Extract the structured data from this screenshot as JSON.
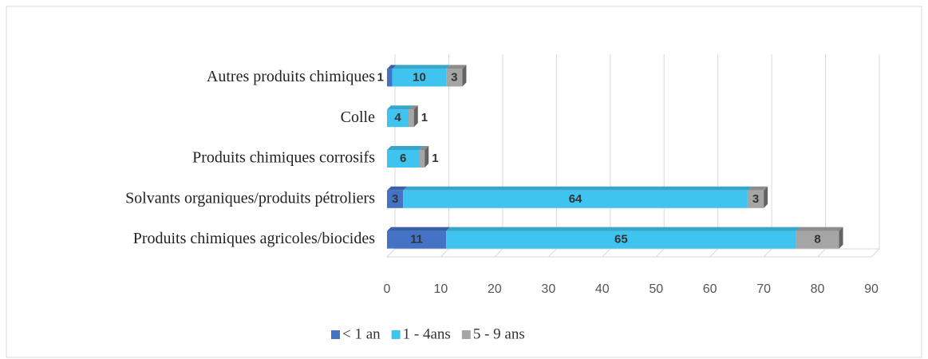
{
  "chart_data": {
    "type": "bar",
    "orientation": "horizontal",
    "stacked": true,
    "categories": [
      "Autres produits chimiques",
      "Colle",
      "Produits chimiques corrosifs",
      "Solvants organiques/produits pétroliers",
      "Produits chimiques agricoles/biocides"
    ],
    "series": [
      {
        "name": "< 1 an",
        "color": "#4472c4",
        "values": [
          1,
          null,
          null,
          3,
          11
        ]
      },
      {
        "name": "1 - 4ans",
        "color": "#3fc3ef",
        "values": [
          10,
          4,
          6,
          64,
          65
        ]
      },
      {
        "name": "5 - 9 ans",
        "color": "#a5a5a5",
        "values": [
          3,
          1,
          1,
          3,
          8
        ]
      }
    ],
    "xlim": [
      0,
      90
    ],
    "xticks": [
      0,
      10,
      20,
      30,
      40,
      50,
      60,
      70,
      80,
      90
    ],
    "grid": true,
    "legend": "bottom"
  }
}
